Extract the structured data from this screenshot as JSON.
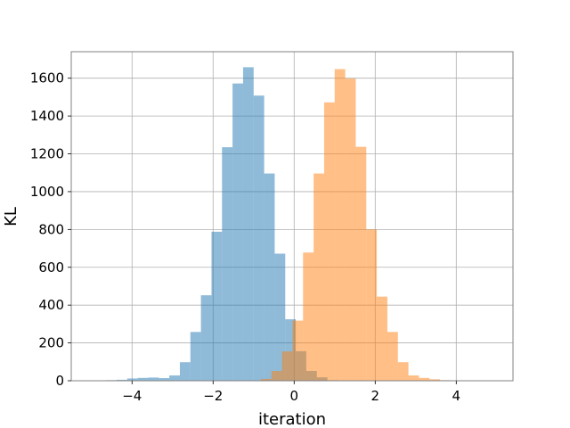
{
  "chart_data": {
    "type": "bar",
    "chart_kind": "overlaid-histogram",
    "xlabel": "iteration",
    "ylabel": "KL",
    "xlim": [
      -5.5,
      5.4
    ],
    "ylim": [
      0,
      1740
    ],
    "grid": true,
    "x_ticks": [
      -4,
      -2,
      0,
      2,
      4
    ],
    "x_tick_labels": [
      "−4",
      "−2",
      "0",
      "2",
      "4"
    ],
    "y_ticks": [
      0,
      200,
      400,
      600,
      800,
      1000,
      1200,
      1400,
      1600
    ],
    "y_tick_labels": [
      "0",
      "200",
      "400",
      "600",
      "800",
      "1000",
      "1200",
      "1400",
      "1600"
    ],
    "series": [
      {
        "color": "#1f77b4",
        "opacity": 0.5,
        "bin_width": 0.26,
        "bins": [
          [
            -5.16,
            1
          ],
          [
            -4.9,
            2
          ],
          [
            -4.64,
            3
          ],
          [
            -4.38,
            5
          ],
          [
            -4.12,
            12
          ],
          [
            -3.86,
            15
          ],
          [
            -3.6,
            17
          ],
          [
            -3.34,
            14
          ],
          [
            -3.08,
            28
          ],
          [
            -2.82,
            98
          ],
          [
            -2.56,
            258
          ],
          [
            -2.3,
            452
          ],
          [
            -2.04,
            788
          ],
          [
            -1.78,
            1235
          ],
          [
            -1.52,
            1572
          ],
          [
            -1.26,
            1658
          ],
          [
            -1.0,
            1508
          ],
          [
            -0.74,
            1096
          ],
          [
            -0.48,
            672
          ],
          [
            -0.22,
            325
          ],
          [
            0.04,
            156
          ],
          [
            0.3,
            52
          ],
          [
            0.56,
            18
          ],
          [
            0.82,
            3
          ],
          [
            1.08,
            1
          ]
        ]
      },
      {
        "color": "#ff7f0e",
        "opacity": 0.5,
        "bin_width": 0.26,
        "bins": [
          [
            -1.08,
            1
          ],
          [
            -0.82,
            10
          ],
          [
            -0.56,
            52
          ],
          [
            -0.3,
            155
          ],
          [
            -0.04,
            318
          ],
          [
            0.22,
            678
          ],
          [
            0.48,
            1096
          ],
          [
            0.74,
            1472
          ],
          [
            1.0,
            1648
          ],
          [
            1.26,
            1598
          ],
          [
            1.52,
            1237
          ],
          [
            1.78,
            800
          ],
          [
            2.04,
            445
          ],
          [
            2.3,
            258
          ],
          [
            2.56,
            98
          ],
          [
            2.82,
            28
          ],
          [
            3.08,
            15
          ],
          [
            3.34,
            8
          ],
          [
            3.6,
            3
          ],
          [
            3.86,
            2
          ],
          [
            4.12,
            1
          ]
        ]
      }
    ]
  }
}
